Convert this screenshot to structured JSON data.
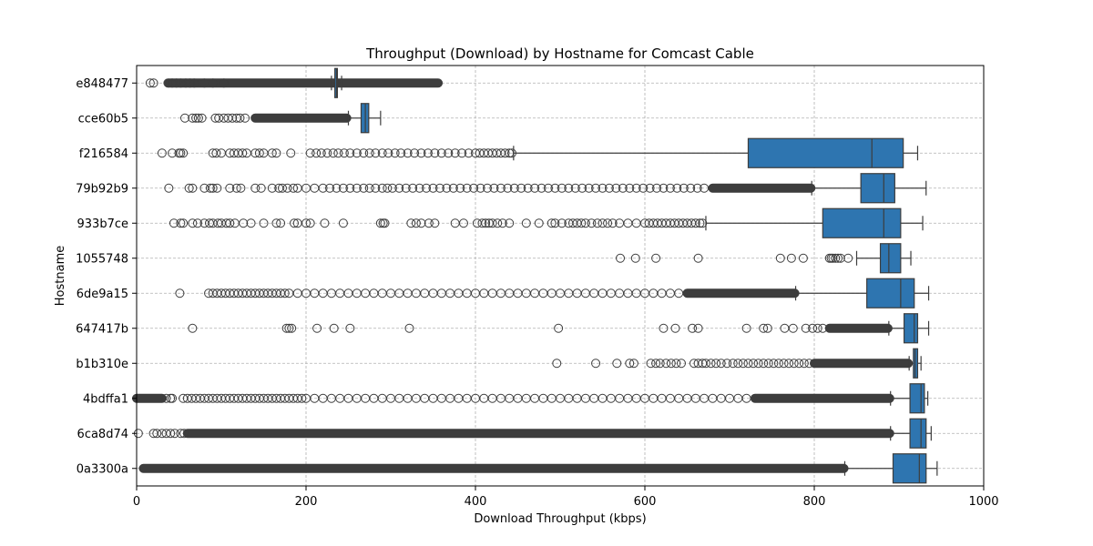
{
  "chart_data": {
    "type": "boxplot",
    "orientation": "horizontal",
    "title": "Throughput (Download) by Hostname for Comcast Cable",
    "xlabel": "Download Throughput (kbps)",
    "ylabel": "Hostname",
    "xlim": [
      0,
      1000
    ],
    "xticks": [
      0,
      200,
      400,
      600,
      800,
      1000
    ],
    "grid": true,
    "box_color": "#2e75b0",
    "edge_color": "#3d3d3d",
    "categories": [
      "e848477",
      "cce60b5",
      "f216584",
      "79b92b9",
      "933b7ce",
      "1055748",
      "6de9a15",
      "647417b",
      "b1b310e",
      "4bdffa1",
      "6ca8d74",
      "0a3300a"
    ],
    "series": [
      {
        "category": "e848477",
        "whisker_low": 230,
        "q1": 234,
        "median": 236,
        "q3": 237,
        "whisker_high": 242,
        "outlier_runs": [
          [
            38,
            356
          ]
        ],
        "outliers": [
          16,
          20,
          37,
          42,
          47,
          52,
          58,
          63,
          68,
          80,
          90,
          103
        ]
      },
      {
        "category": "cce60b5",
        "whisker_low": 250,
        "q1": 265,
        "median": 270,
        "q3": 274,
        "whisker_high": 288,
        "outlier_runs": [
          [
            140,
            248
          ]
        ],
        "outliers": [
          57,
          66,
          70,
          73,
          77,
          93,
          97,
          103,
          108,
          113,
          118,
          122,
          128
        ]
      },
      {
        "category": "f216584",
        "whisker_low": 445,
        "q1": 722,
        "median": 868,
        "q3": 905,
        "whisker_high": 922,
        "outlier_runs": [],
        "outliers": [
          30,
          42,
          50,
          52,
          55,
          90,
          94,
          100,
          110,
          115,
          120,
          125,
          130,
          140,
          145,
          150,
          160,
          165,
          182,
          205,
          212,
          218,
          225,
          232,
          238,
          245,
          252,
          260,
          268,
          275,
          282,
          290,
          297,
          305,
          312,
          320,
          328,
          336,
          344,
          352,
          360,
          368,
          376,
          384,
          392,
          400,
          405,
          410,
          415,
          420,
          425,
          430,
          435,
          440,
          443
        ]
      },
      {
        "category": "79b92b9",
        "whisker_low": 797,
        "q1": 855,
        "median": 882,
        "q3": 895,
        "whisker_high": 932,
        "outlier_runs": [
          [
            680,
            796
          ]
        ],
        "outliers": [
          38,
          62,
          66,
          80,
          87,
          90,
          95,
          110,
          118,
          123,
          140,
          147,
          160,
          168,
          172,
          178,
          185,
          190,
          200,
          210,
          220,
          228,
          236,
          244,
          252,
          260,
          268,
          275,
          282,
          290,
          296,
          302,
          310,
          318,
          326,
          334,
          342,
          350,
          358,
          366,
          374,
          382,
          390,
          398,
          406,
          414,
          422,
          430,
          438,
          446,
          454,
          462,
          470,
          478,
          486,
          494,
          502,
          510,
          518,
          526,
          534,
          542,
          550,
          558,
          566,
          574,
          582,
          590,
          598,
          606,
          614,
          622,
          630,
          638,
          646,
          654,
          662,
          670
        ]
      },
      {
        "category": "933b7ce",
        "whisker_low": 672,
        "q1": 810,
        "median": 882,
        "q3": 902,
        "whisker_high": 928,
        "outlier_runs": [],
        "outliers": [
          44,
          52,
          55,
          66,
          72,
          80,
          86,
          90,
          96,
          100,
          106,
          110,
          116,
          126,
          135,
          150,
          165,
          170,
          186,
          190,
          200,
          205,
          222,
          244,
          288,
          291,
          293,
          324,
          330,
          336,
          345,
          352,
          376,
          386,
          402,
          408,
          412,
          416,
          420,
          426,
          432,
          440,
          460,
          475,
          490,
          494,
          502,
          510,
          515,
          520,
          525,
          530,
          537,
          544,
          550,
          556,
          562,
          570,
          580,
          590,
          600,
          605,
          610,
          615,
          620,
          625,
          630,
          635,
          640,
          645,
          650,
          655,
          660,
          665,
          668
        ]
      },
      {
        "category": "1055748",
        "whisker_low": 850,
        "q1": 878,
        "median": 888,
        "q3": 902,
        "whisker_high": 914,
        "outlier_runs": [],
        "outliers": [
          571,
          589,
          613,
          663,
          760,
          773,
          787,
          818,
          820,
          822,
          825,
          828,
          831,
          840
        ]
      },
      {
        "category": "6de9a15",
        "whisker_low": 778,
        "q1": 862,
        "median": 902,
        "q3": 918,
        "whisker_high": 935,
        "outlier_runs": [
          [
            650,
            777
          ]
        ],
        "outliers": [
          51,
          85,
          90,
          95,
          100,
          105,
          110,
          115,
          120,
          125,
          130,
          135,
          140,
          145,
          150,
          155,
          160,
          165,
          170,
          175,
          180,
          190,
          200,
          210,
          220,
          230,
          240,
          250,
          260,
          270,
          280,
          290,
          300,
          310,
          320,
          330,
          340,
          350,
          360,
          370,
          380,
          390,
          400,
          410,
          420,
          430,
          440,
          450,
          460,
          470,
          480,
          490,
          500,
          510,
          520,
          530,
          540,
          550,
          560,
          570,
          580,
          590,
          600,
          610,
          620,
          630,
          640
        ]
      },
      {
        "category": "647417b",
        "whisker_low": 888,
        "q1": 906,
        "median": 918,
        "q3": 922,
        "whisker_high": 935,
        "outlier_runs": [
          [
            818,
            887
          ]
        ],
        "outliers": [
          66,
          177,
          180,
          183,
          213,
          233,
          252,
          322,
          498,
          622,
          636,
          656,
          663,
          720,
          740,
          745,
          765,
          775,
          790,
          798,
          804,
          810
        ]
      },
      {
        "category": "b1b310e",
        "whisker_low": 912,
        "q1": 917,
        "median": 919,
        "q3": 922,
        "whisker_high": 926,
        "outlier_runs": [
          [
            800,
            911
          ]
        ],
        "outliers": [
          496,
          542,
          567,
          582,
          587,
          607,
          613,
          618,
          625,
          631,
          637,
          643,
          658,
          663,
          668,
          672,
          678,
          684,
          690,
          697,
          704,
          710,
          716,
          722,
          728,
          734,
          740,
          746,
          752,
          758,
          764,
          770,
          776,
          782,
          788,
          794
        ]
      },
      {
        "category": "4bdffa1",
        "whisker_low": 890,
        "q1": 913,
        "median": 926,
        "q3": 930,
        "whisker_high": 934,
        "outlier_runs": [
          [
            730,
            889
          ],
          [
            0,
            30
          ]
        ],
        "outliers": [
          35,
          40,
          42,
          55,
          60,
          65,
          70,
          75,
          80,
          85,
          90,
          95,
          100,
          105,
          110,
          115,
          120,
          125,
          130,
          135,
          140,
          145,
          150,
          155,
          160,
          165,
          170,
          175,
          180,
          185,
          190,
          195,
          200,
          210,
          220,
          230,
          240,
          250,
          260,
          270,
          280,
          290,
          300,
          310,
          320,
          330,
          340,
          350,
          360,
          370,
          380,
          390,
          400,
          410,
          420,
          430,
          440,
          450,
          460,
          470,
          480,
          490,
          500,
          510,
          520,
          530,
          540,
          550,
          560,
          570,
          580,
          590,
          600,
          610,
          620,
          630,
          640,
          650,
          660,
          670,
          680,
          690,
          700,
          710,
          720
        ]
      },
      {
        "category": "6ca8d74",
        "whisker_low": 890,
        "q1": 913,
        "median": 926,
        "q3": 932,
        "whisker_high": 938,
        "outlier_runs": [
          [
            60,
            889
          ]
        ],
        "outliers": [
          2,
          20,
          24,
          30,
          35,
          40,
          45,
          52,
          56
        ]
      },
      {
        "category": "0a3300a",
        "whisker_low": 836,
        "q1": 893,
        "median": 924,
        "q3": 932,
        "whisker_high": 945,
        "outlier_runs": [
          [
            8,
            835
          ]
        ],
        "outliers": []
      }
    ]
  }
}
